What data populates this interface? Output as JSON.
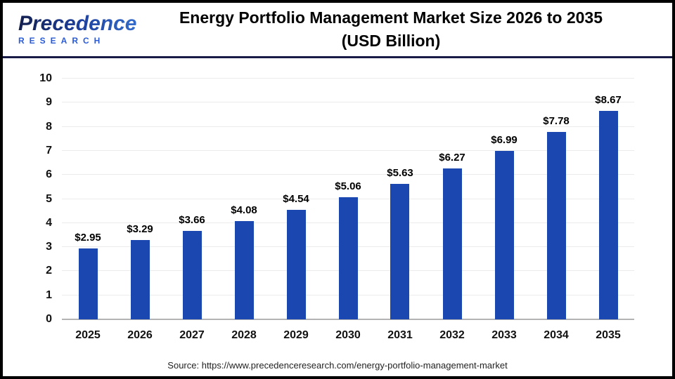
{
  "header": {
    "logo": {
      "line1": "Precedence",
      "line2": "RESEARCH"
    },
    "title_line1": "Energy Portfolio Management Market Size 2026 to 2035",
    "title_line2": "(USD Billion)"
  },
  "chart_data": {
    "type": "bar",
    "title": "Energy Portfolio Management Market Size 2026 to 2035 (USD Billion)",
    "categories": [
      "2025",
      "2026",
      "2027",
      "2028",
      "2029",
      "2030",
      "2031",
      "2032",
      "2033",
      "2034",
      "2035"
    ],
    "values": [
      2.95,
      3.29,
      3.66,
      4.08,
      4.54,
      5.06,
      5.63,
      6.27,
      6.99,
      7.78,
      8.67
    ],
    "value_labels": [
      "$2.95",
      "$3.29",
      "$3.66",
      "$4.08",
      "$4.54",
      "$5.06",
      "$5.63",
      "$6.27",
      "$6.99",
      "$7.78",
      "$8.67"
    ],
    "xlabel": "",
    "ylabel": "",
    "ylim": [
      0,
      10
    ],
    "ytick_interval": 1,
    "grid": true,
    "legend": "none",
    "bar_color": "#1a48b0"
  },
  "footer": {
    "source": "Source: https://www.precedenceresearch.com/energy-portfolio-management-market"
  },
  "colors": {
    "bar": "#1a48b0",
    "header_rule": "#171b46",
    "outer_border": "#000000",
    "gridline": "#ebebeb",
    "axis_baseline": "#b3b3b3",
    "logo_dark": "#131f4e",
    "logo_blue": "#2a5bd7"
  }
}
